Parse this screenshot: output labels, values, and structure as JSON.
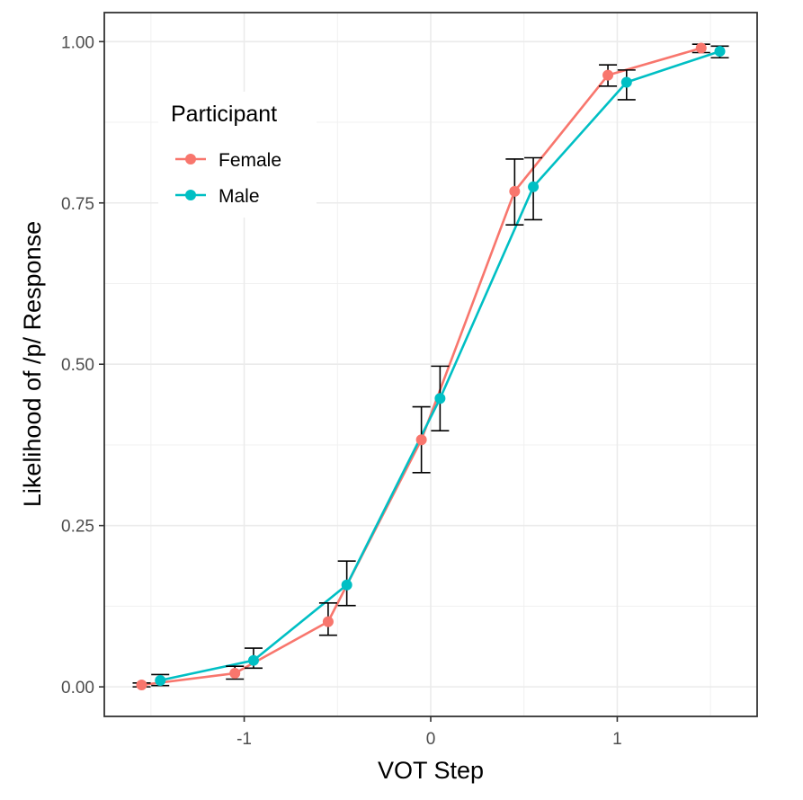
{
  "chart_data": {
    "type": "line",
    "title": "",
    "xlabel": "VOT Step",
    "ylabel": "Likelihood of /p/ Response",
    "xlim": [
      -1.75,
      1.75
    ],
    "ylim": [
      -0.0458,
      1.045
    ],
    "x_ticks": [
      -1,
      0,
      1
    ],
    "x_tick_labels": [
      "-1",
      "0",
      "1"
    ],
    "y_ticks": [
      0,
      0.25,
      0.5,
      0.75,
      1
    ],
    "y_tick_labels": [
      "0.00",
      "0.25",
      "0.50",
      "0.75",
      "1.00"
    ],
    "grid": true,
    "legend": {
      "title": "Participant",
      "position": "top-left"
    },
    "series": [
      {
        "name": "Female",
        "color": "#F8766D",
        "x": [
          -1.55,
          -1.05,
          -0.55,
          -0.05,
          0.45,
          0.95,
          1.45
        ],
        "y": [
          0.003,
          0.021,
          0.101,
          0.383,
          0.768,
          0.948,
          0.99
        ],
        "err_low": [
          0.0,
          0.012,
          0.08,
          0.332,
          0.716,
          0.931,
          0.983
        ],
        "err_high": [
          0.006,
          0.032,
          0.13,
          0.434,
          0.818,
          0.964,
          0.996
        ]
      },
      {
        "name": "Male",
        "color": "#00BFC4",
        "x": [
          -1.45,
          -0.95,
          -0.45,
          0.05,
          0.55,
          1.05,
          1.55
        ],
        "y": [
          0.01,
          0.041,
          0.158,
          0.447,
          0.775,
          0.937,
          0.985
        ],
        "err_low": [
          0.002,
          0.029,
          0.126,
          0.397,
          0.724,
          0.91,
          0.975
        ],
        "err_high": [
          0.019,
          0.06,
          0.195,
          0.497,
          0.82,
          0.956,
          0.993
        ]
      }
    ]
  }
}
